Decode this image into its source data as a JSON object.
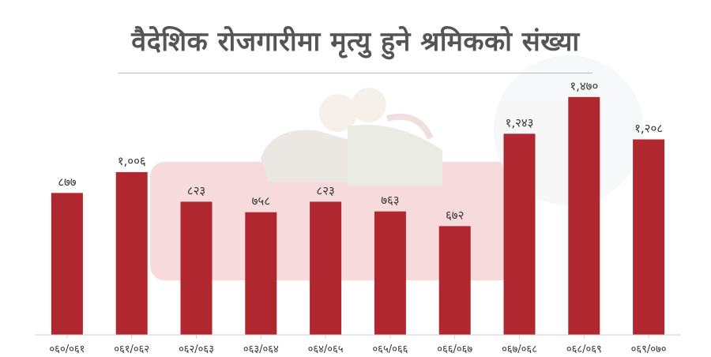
{
  "chart_data": {
    "type": "bar",
    "title": "वैदेशिक रोजगारीमा मृत्यु हुने श्रमिकको संख्या",
    "categories": [
      "०६०/०६१",
      "०६१/०६२",
      "०६२/०६३",
      "०६३/०६४",
      "०६४/०६५",
      "०६५/०६६",
      "०६६/०६७",
      "०६७/०६८",
      "०६८/०६९",
      "०६९/०७०"
    ],
    "values": [
      877,
      1006,
      823,
      758,
      823,
      763,
      672,
      1243,
      1470,
      1208
    ],
    "value_labels": [
      "८७७",
      "१,००६",
      "८२३",
      "७५८",
      "८२३",
      "७६३",
      "६७२",
      "१,२४३",
      "१,४७०",
      "१,२०८"
    ],
    "ylim": [
      0,
      1640
    ],
    "grid": false,
    "legend": "none",
    "bar_color": "#b0272f",
    "xlabel": "",
    "ylabel": ""
  }
}
